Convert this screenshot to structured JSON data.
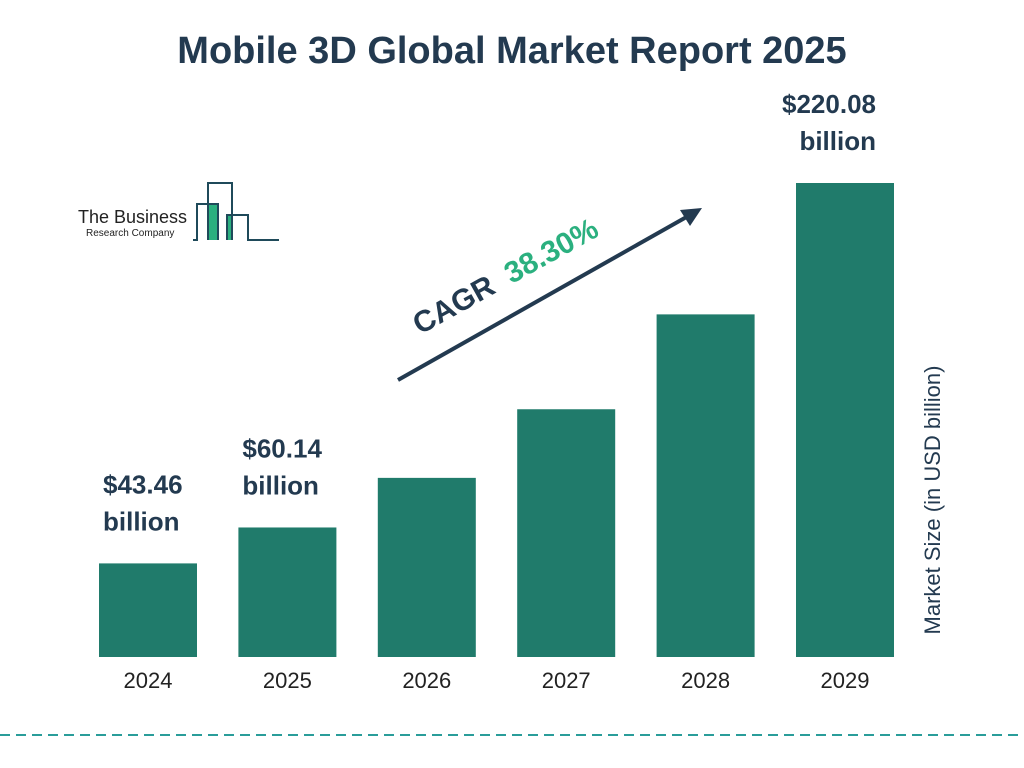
{
  "chart_data": {
    "type": "bar",
    "title": "Mobile 3D Global Market Report 2025",
    "ylabel": "Market Size (in USD billion)",
    "xlabel": "",
    "categories": [
      "2024",
      "2025",
      "2026",
      "2027",
      "2028",
      "2029"
    ],
    "values": [
      43.46,
      60.14,
      83.17,
      115.03,
      159.08,
      220.08
    ],
    "data_labels": [
      "$43.46 billion",
      "$60.14 billion",
      "",
      "",
      "",
      "$220.08 billion"
    ],
    "ylim": [
      0,
      220.08
    ],
    "grid": false,
    "bar_color": "#207b6b",
    "annotation": {
      "label": "CAGR",
      "value": "38.30%",
      "label_color": "#233a50",
      "value_color": "#2bb07f"
    }
  },
  "logo": {
    "line1": "The Business",
    "line2": "Research Company"
  },
  "colors": {
    "title": "#233a50",
    "divider": "#2a9d9a"
  }
}
